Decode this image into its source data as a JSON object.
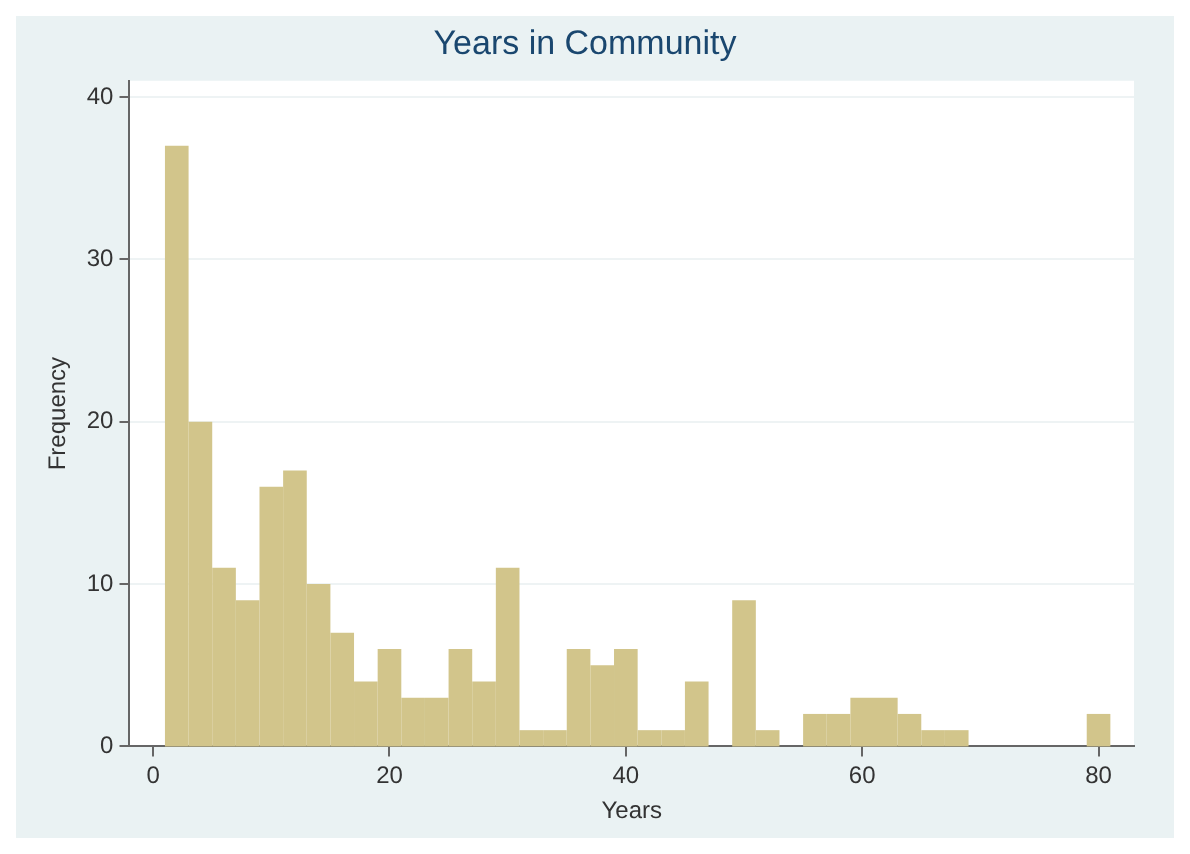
{
  "chart_data": {
    "type": "histogram",
    "title": "Years in Community",
    "xlabel": "Years",
    "ylabel": "Frequency",
    "bins": [
      1,
      3,
      5,
      7,
      9,
      11,
      13,
      15,
      17,
      19,
      21,
      23,
      25,
      27,
      29,
      31,
      33,
      35,
      37,
      39,
      41,
      43,
      45,
      47,
      49,
      51,
      53,
      55,
      57,
      59,
      61,
      63,
      65,
      67,
      69,
      71,
      73,
      75,
      77,
      79,
      81
    ],
    "values": [
      37,
      20,
      11,
      9,
      16,
      17,
      10,
      7,
      4,
      6,
      3,
      3,
      6,
      4,
      11,
      1,
      1,
      6,
      5,
      6,
      1,
      1,
      4,
      0,
      9,
      1,
      0,
      2,
      2,
      3,
      3,
      2,
      1,
      1,
      0,
      0,
      0,
      0,
      0,
      2
    ],
    "color": "#d2c58b",
    "xlim": [
      -2,
      83
    ],
    "xticks": [
      0,
      20,
      40,
      60,
      80
    ],
    "ylim": [
      0,
      41
    ],
    "yticks": [
      0,
      10,
      20,
      30,
      40
    ],
    "grid": "y"
  }
}
